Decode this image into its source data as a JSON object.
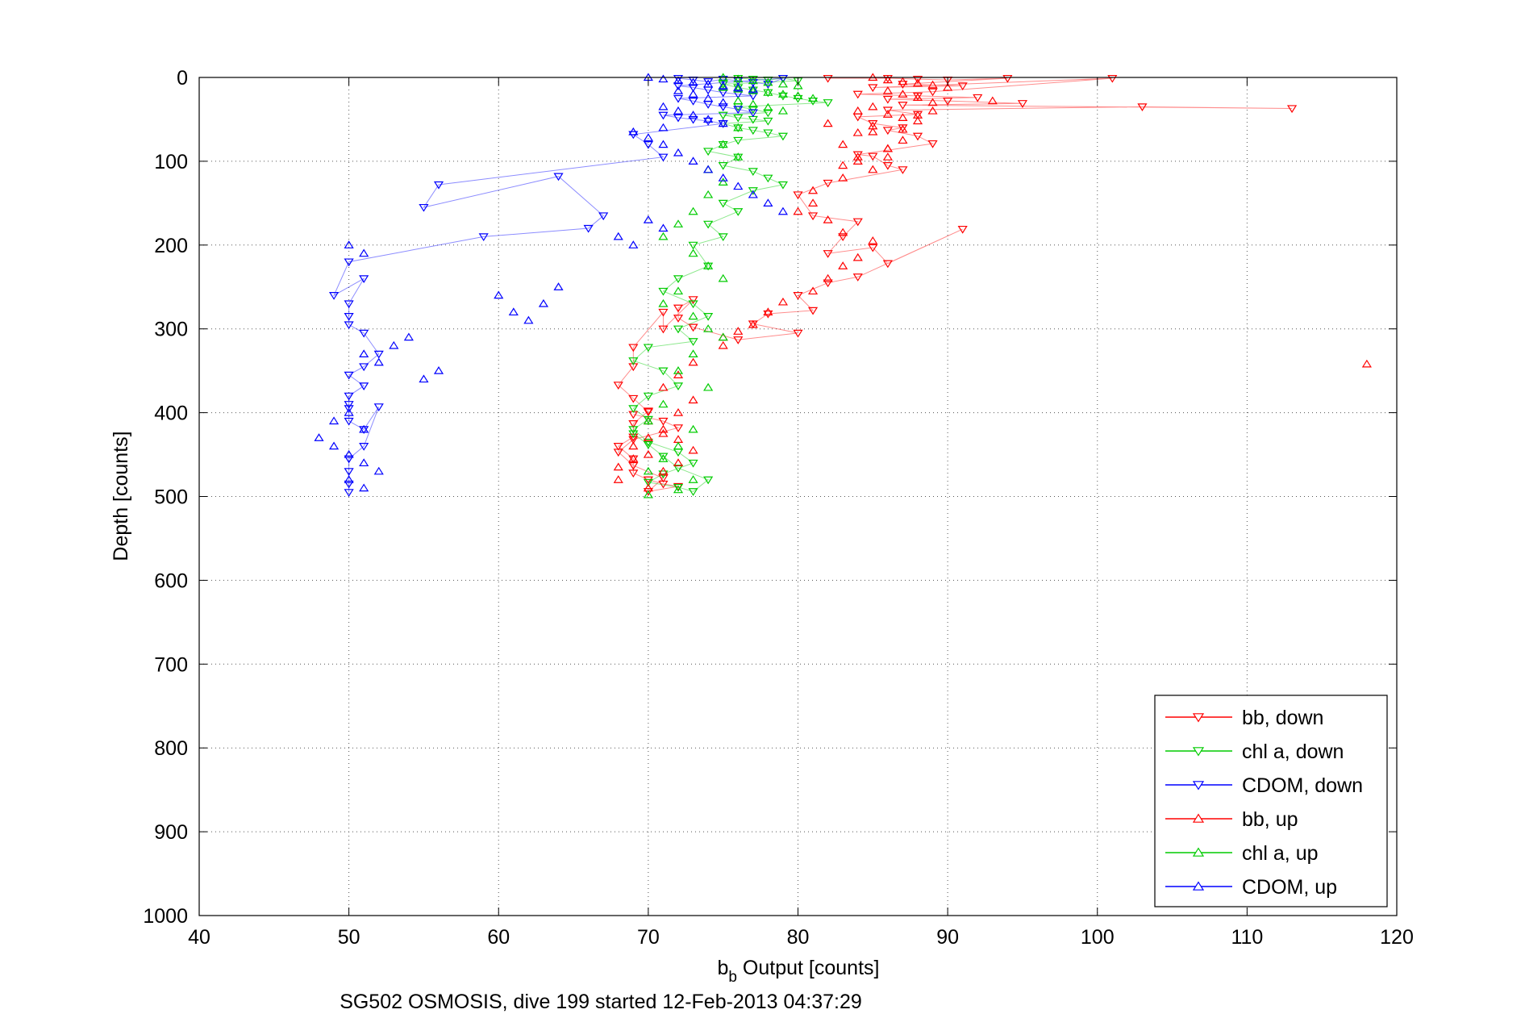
{
  "chart_data": {
    "type": "scatter",
    "caption": "SG502 OSMOSIS, dive 199 started 12-Feb-2013 04:37:29",
    "xlabel_main": "b",
    "xlabel_sub": "b",
    "xlabel_rest": " Output [counts]",
    "ylabel": "Depth [counts]",
    "xlim": [
      40,
      120
    ],
    "ylim": [
      0,
      1000
    ],
    "y_reversed": true,
    "grid": true,
    "legend_position": "bottom-right",
    "xticks": [
      "40",
      "50",
      "60",
      "70",
      "80",
      "90",
      "100",
      "110",
      "120"
    ],
    "yticks": [
      "0",
      "100",
      "200",
      "300",
      "400",
      "500",
      "600",
      "700",
      "800",
      "900",
      "1000"
    ],
    "legend": [
      "bb, down",
      "chl a, down",
      "CDOM, down",
      "bb, up",
      "chl a, up",
      "CDOM, up"
    ],
    "series": [
      {
        "name": "bb, down",
        "color": "#ff0000",
        "marker": "triangle-down",
        "connected": true,
        "x": [
          82,
          86,
          88,
          90,
          94,
          87,
          91,
          85,
          101,
          89,
          84,
          88,
          92,
          86,
          90,
          95,
          87,
          113,
          103,
          86,
          88,
          84,
          85,
          87,
          86,
          88,
          89,
          84,
          85,
          86,
          87,
          82,
          80,
          81,
          84,
          83,
          82,
          85,
          86,
          91,
          84,
          82,
          80,
          81,
          78,
          77,
          80,
          76,
          73,
          72,
          72,
          73,
          71,
          71,
          69,
          69,
          68,
          69,
          70,
          70,
          69,
          69,
          68,
          69,
          69,
          70,
          71,
          72,
          70,
          71,
          69,
          68,
          69,
          72,
          71,
          69
        ],
        "y": [
          1,
          1,
          2,
          3,
          1,
          8,
          10,
          12,
          1,
          17,
          20,
          22,
          24,
          26,
          28,
          31,
          33,
          37,
          35,
          39,
          44,
          47,
          55,
          60,
          63,
          70,
          79,
          92,
          94,
          105,
          110,
          126,
          140,
          165,
          172,
          190,
          210,
          203,
          222,
          181,
          238,
          245,
          260,
          278,
          282,
          294,
          305,
          313,
          298,
          287,
          275,
          265,
          300,
          280,
          322,
          345,
          367,
          383,
          399,
          398,
          413,
          429,
          440,
          455,
          472,
          480,
          485,
          488,
          494,
          478,
          463,
          447,
          432,
          418,
          410,
          402
        ]
      },
      {
        "name": "chl a, down",
        "color": "#00cc00",
        "marker": "triangle-down",
        "connected": true,
        "x": [
          76,
          77,
          78,
          79,
          80,
          75,
          76,
          77,
          78,
          79,
          80,
          81,
          82,
          76,
          77,
          78,
          75,
          76,
          77,
          78,
          75,
          76,
          77,
          78,
          79,
          76,
          75,
          74,
          76,
          75,
          77,
          78,
          79,
          77,
          75,
          76,
          74,
          75,
          73,
          74,
          72,
          71,
          73,
          74,
          72,
          73,
          70,
          69,
          71,
          72,
          70,
          69,
          70,
          69,
          70,
          72,
          73,
          71,
          70,
          72,
          73,
          74,
          72,
          71,
          70,
          69
        ],
        "y": [
          1,
          2,
          3,
          1,
          4,
          8,
          12,
          15,
          18,
          22,
          25,
          28,
          30,
          35,
          38,
          42,
          45,
          48,
          50,
          52,
          55,
          60,
          63,
          66,
          70,
          75,
          80,
          88,
          95,
          105,
          112,
          120,
          128,
          135,
          150,
          160,
          175,
          190,
          200,
          225,
          240,
          255,
          270,
          285,
          300,
          315,
          322,
          338,
          350,
          368,
          380,
          395,
          408,
          420,
          435,
          447,
          460,
          473,
          483,
          489,
          494,
          480,
          466,
          452,
          438,
          425
        ]
      },
      {
        "name": "CDOM, down",
        "color": "#0000ff",
        "marker": "triangle-down",
        "connected": true,
        "x": [
          72,
          73,
          74,
          75,
          76,
          77,
          78,
          79,
          72,
          73,
          74,
          75,
          76,
          77,
          72,
          73,
          74,
          75,
          76,
          77,
          71,
          72,
          73,
          74,
          75,
          69,
          70,
          71,
          56,
          55,
          64,
          67,
          66,
          59,
          50,
          49,
          51,
          50,
          50,
          50,
          51,
          52,
          51,
          50,
          51,
          50,
          50,
          50,
          50,
          51,
          52,
          51,
          50,
          50,
          50,
          50
        ],
        "y": [
          1,
          3,
          5,
          2,
          4,
          6,
          8,
          1,
          10,
          12,
          15,
          18,
          20,
          22,
          25,
          28,
          32,
          35,
          38,
          42,
          45,
          48,
          50,
          52,
          55,
          68,
          80,
          95,
          128,
          155,
          118,
          165,
          180,
          190,
          220,
          260,
          240,
          270,
          285,
          295,
          305,
          330,
          345,
          355,
          368,
          380,
          390,
          395,
          410,
          420,
          393,
          440,
          455,
          470,
          485,
          495
        ]
      },
      {
        "name": "bb, up",
        "color": "#ff0000",
        "marker": "triangle-up",
        "connected": false,
        "x": [
          85,
          86,
          87,
          88,
          89,
          90,
          93,
          86,
          87,
          88,
          89,
          85,
          84,
          86,
          87,
          88,
          85,
          87,
          84,
          83,
          86,
          86,
          84,
          85,
          83,
          81,
          81,
          80,
          82,
          83,
          85,
          84,
          83,
          82,
          81,
          79,
          78,
          77,
          76,
          75,
          75,
          73,
          72,
          71,
          73,
          72,
          70,
          71,
          72,
          73,
          69,
          68,
          68,
          70,
          71,
          72,
          70,
          69,
          70,
          71,
          118,
          89,
          88,
          82,
          85,
          87,
          86,
          84,
          83
        ],
        "y": [
          0,
          3,
          5,
          7,
          9,
          12,
          28,
          16,
          20,
          24,
          30,
          35,
          40,
          44,
          48,
          52,
          58,
          62,
          66,
          80,
          85,
          95,
          100,
          110,
          120,
          135,
          150,
          160,
          170,
          185,
          195,
          215,
          225,
          240,
          255,
          268,
          280,
          295,
          303,
          310,
          320,
          340,
          355,
          370,
          385,
          400,
          410,
          420,
          432,
          445,
          455,
          465,
          480,
          490,
          470,
          460,
          450,
          440,
          430,
          425,
          342,
          40,
          45,
          55,
          65,
          75,
          85,
          95,
          105
        ]
      },
      {
        "name": "chl a, up",
        "color": "#00cc00",
        "marker": "triangle-up",
        "connected": false,
        "x": [
          75,
          76,
          77,
          78,
          79,
          80,
          75,
          76,
          77,
          78,
          79,
          80,
          81,
          76,
          77,
          78,
          79,
          76,
          75,
          76,
          74,
          75,
          74,
          73,
          72,
          71,
          73,
          74,
          75,
          72,
          71,
          73,
          74,
          75,
          73,
          72,
          74,
          71,
          70,
          73,
          72,
          71,
          70,
          73,
          72,
          70
        ],
        "y": [
          0,
          2,
          4,
          6,
          8,
          10,
          12,
          14,
          16,
          18,
          20,
          22,
          25,
          28,
          32,
          36,
          40,
          60,
          80,
          95,
          110,
          125,
          140,
          160,
          175,
          190,
          210,
          225,
          240,
          255,
          270,
          285,
          300,
          310,
          330,
          350,
          370,
          390,
          410,
          420,
          440,
          455,
          470,
          480,
          492,
          498
        ]
      },
      {
        "name": "CDOM, up",
        "color": "#0000ff",
        "marker": "triangle-up",
        "connected": false,
        "x": [
          70,
          71,
          72,
          73,
          74,
          75,
          76,
          77,
          72,
          73,
          74,
          75,
          71,
          72,
          73,
          74,
          75,
          71,
          69,
          70,
          71,
          72,
          73,
          74,
          75,
          76,
          77,
          78,
          79,
          70,
          71,
          68,
          69,
          60,
          61,
          62,
          63,
          64,
          53,
          54,
          55,
          56,
          51,
          52,
          50,
          49,
          51,
          48,
          49,
          50,
          51,
          52,
          50,
          51,
          50,
          51
        ],
        "y": [
          0,
          2,
          4,
          6,
          8,
          10,
          12,
          14,
          16,
          20,
          25,
          30,
          35,
          40,
          45,
          50,
          55,
          60,
          65,
          72,
          80,
          90,
          100,
          110,
          120,
          130,
          140,
          150,
          160,
          170,
          180,
          190,
          200,
          260,
          280,
          290,
          270,
          250,
          320,
          310,
          360,
          350,
          330,
          340,
          400,
          410,
          420,
          430,
          440,
          450,
          460,
          470,
          480,
          490,
          200,
          210
        ]
      }
    ]
  }
}
